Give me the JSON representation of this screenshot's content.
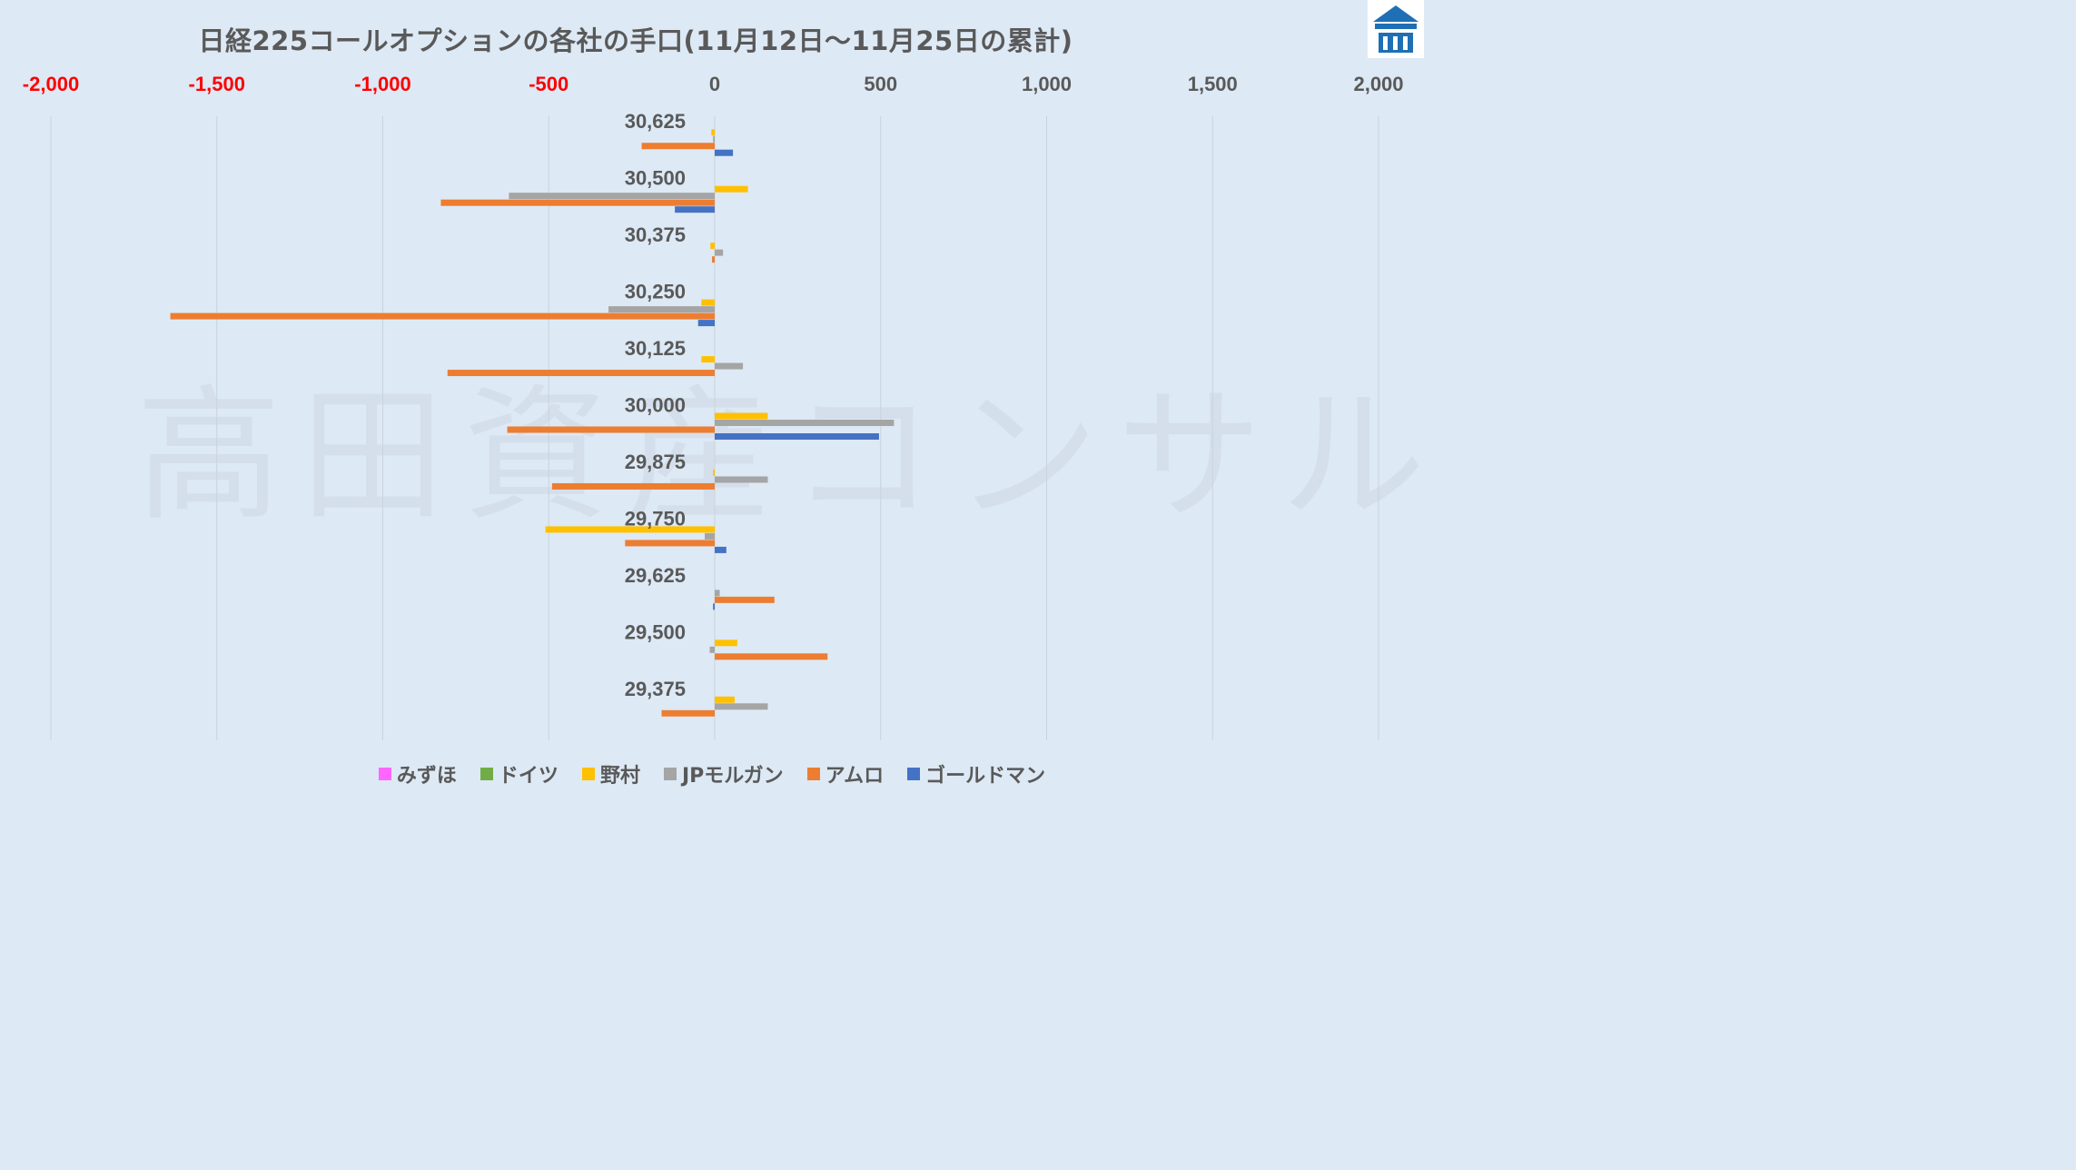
{
  "title": "日経225コールオプションの各社の手口(11月12日～11月25日の累計)",
  "watermark": "高田資産コンサル",
  "logo_icon": "takada-logo-icon",
  "chart_data": {
    "type": "bar",
    "orientation": "horizontal",
    "xlim": [
      -2000,
      2000
    ],
    "x_ticks": [
      "-2,000",
      "-1,500",
      "-1,000",
      "-500",
      "0",
      "500",
      "1,000",
      "1,500",
      "2,000"
    ],
    "x_tick_values": [
      -2000,
      -1500,
      -1000,
      -500,
      0,
      500,
      1000,
      1500,
      2000
    ],
    "negative_tick_color": "#ff0000",
    "positive_tick_color": "#595959",
    "grid": true,
    "legend_position": "bottom",
    "categories": [
      "30,625",
      "30,500",
      "30,375",
      "30,250",
      "30,125",
      "30,000",
      "29,875",
      "29,750",
      "29,625",
      "29,500",
      "29,375"
    ],
    "series": [
      {
        "name": "みずほ",
        "color": "#ff66ff",
        "values": [
          0,
          0,
          0,
          0,
          0,
          0,
          0,
          0,
          0,
          0,
          0
        ]
      },
      {
        "name": "ドイツ",
        "color": "#70ad47",
        "values": [
          0,
          0,
          0,
          0,
          0,
          0,
          0,
          0,
          0,
          0,
          0
        ]
      },
      {
        "name": "野村",
        "color": "#ffc000",
        "values": [
          -10,
          100,
          -13,
          -40,
          -40,
          160,
          -5,
          -510,
          0,
          68,
          60
        ]
      },
      {
        "name": "JPモルガン",
        "color": "#a5a5a5",
        "values": [
          -5,
          -620,
          25,
          -320,
          85,
          540,
          160,
          -30,
          15,
          -15,
          160
        ]
      },
      {
        "name": "アムロ",
        "color": "#ed7d31",
        "values": [
          -220,
          -825,
          -8,
          -1640,
          -805,
          -625,
          -490,
          -270,
          180,
          340,
          -160
        ]
      },
      {
        "name": "ゴールドマン",
        "color": "#4472c4",
        "values": [
          55,
          -120,
          0,
          -50,
          0,
          495,
          0,
          35,
          -5,
          0,
          0
        ]
      }
    ]
  }
}
